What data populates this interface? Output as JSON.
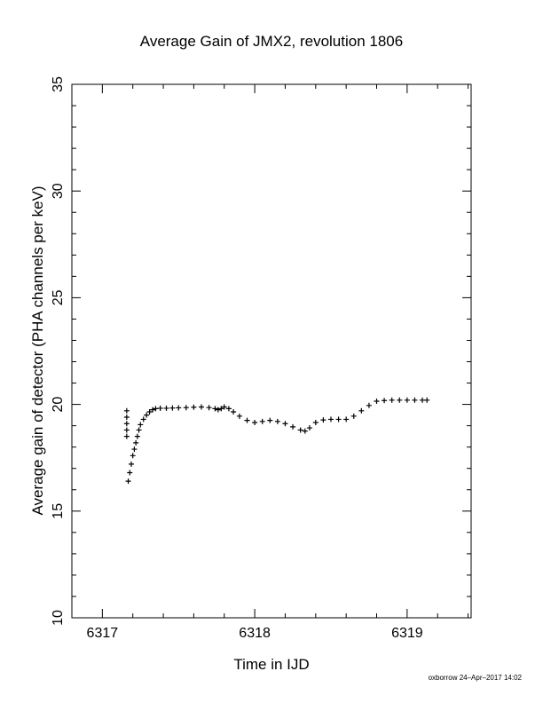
{
  "chart_data": {
    "type": "scatter",
    "title": "Average Gain of JMX2, revolution 1806",
    "xlabel": "Time in IJD",
    "ylabel": "Average gain of detector (PHA channels per keV)",
    "xlim": [
      6316.8,
      6319.42
    ],
    "ylim": [
      10,
      35
    ],
    "x_ticks": [
      "6317",
      "6318",
      "6319"
    ],
    "y_ticks": [
      "10",
      "15",
      "20",
      "25",
      "30",
      "35"
    ],
    "grid": false,
    "marker": "plus",
    "marker_color": "#000000",
    "series": [
      {
        "name": "",
        "x": [
          6317.16,
          6317.16,
          6317.16,
          6317.16,
          6317.16,
          6317.17,
          6317.18,
          6317.19,
          6317.2,
          6317.21,
          6317.22,
          6317.23,
          6317.24,
          6317.25,
          6317.27,
          6317.29,
          6317.31,
          6317.33,
          6317.35,
          6317.38,
          6317.42,
          6317.46,
          6317.5,
          6317.55,
          6317.6,
          6317.65,
          6317.7,
          6317.74,
          6317.76,
          6317.78,
          6317.8,
          6317.83,
          6317.86,
          6317.9,
          6317.95,
          6318.0,
          6318.05,
          6318.1,
          6318.15,
          6318.2,
          6318.25,
          6318.3,
          6318.33,
          6318.36,
          6318.4,
          6318.45,
          6318.5,
          6318.55,
          6318.6,
          6318.65,
          6318.7,
          6318.75,
          6318.8,
          6318.85,
          6318.9,
          6318.95,
          6319.0,
          6319.05,
          6319.1,
          6319.13
        ],
        "y": [
          19.7,
          19.4,
          19.1,
          18.8,
          18.5,
          16.4,
          16.8,
          17.2,
          17.6,
          17.9,
          18.2,
          18.5,
          18.8,
          19.05,
          19.3,
          19.5,
          19.65,
          19.75,
          19.8,
          19.82,
          19.82,
          19.83,
          19.84,
          19.85,
          19.87,
          19.88,
          19.85,
          19.8,
          19.75,
          19.8,
          19.88,
          19.8,
          19.65,
          19.45,
          19.25,
          19.15,
          19.2,
          19.25,
          19.2,
          19.1,
          18.95,
          18.8,
          18.75,
          18.9,
          19.15,
          19.27,
          19.3,
          19.3,
          19.3,
          19.45,
          19.7,
          19.95,
          20.15,
          20.18,
          20.2,
          20.2,
          20.2,
          20.2,
          20.2,
          20.2
        ]
      }
    ]
  },
  "footer": "oxborrow 24–Apr–2017 14:02"
}
